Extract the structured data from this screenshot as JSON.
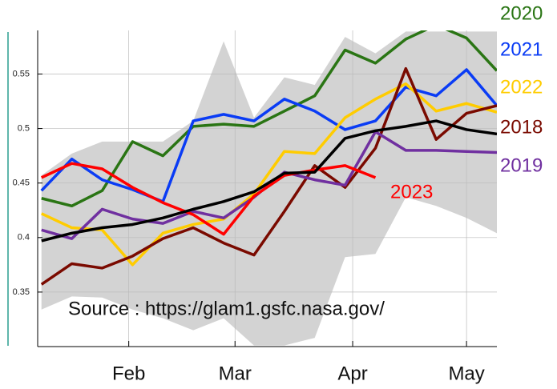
{
  "chart_data": {
    "type": "line",
    "annotation": "Source : https://glam1.gsfc.nasa.gov/",
    "x": [
      9,
      17,
      25,
      33,
      41,
      49,
      57,
      65,
      73,
      81,
      89,
      97,
      105,
      113,
      121,
      129
    ],
    "xlim": [
      8,
      129
    ],
    "xticks": [
      {
        "value": 32,
        "label": "Feb"
      },
      {
        "value": 60,
        "label": "Mar"
      },
      {
        "value": 91,
        "label": "Apr"
      },
      {
        "value": 121,
        "label": "May"
      }
    ],
    "ylim": [
      0.3,
      0.59
    ],
    "yticks": [
      0.35,
      0.4,
      0.45,
      0.5,
      0.55
    ],
    "grid": true,
    "band": {
      "color": "#d3d3d3",
      "lower": [
        0.334,
        0.346,
        0.345,
        0.334,
        0.326,
        0.315,
        0.326,
        0.301,
        0.301,
        0.308,
        0.382,
        0.385,
        0.437,
        0.429,
        0.418,
        0.404
      ],
      "upper": [
        0.457,
        0.477,
        0.488,
        0.488,
        0.488,
        0.507,
        0.58,
        0.51,
        0.547,
        0.54,
        0.584,
        0.569,
        0.589,
        0.589,
        0.589,
        0.589
      ]
    },
    "series": [
      {
        "name": "2020",
        "color": "#2a7514",
        "values": [
          0.436,
          0.429,
          0.443,
          0.488,
          0.475,
          0.502,
          0.504,
          0.502,
          0.516,
          0.53,
          0.572,
          0.56,
          0.582,
          0.595,
          0.583,
          0.553
        ]
      },
      {
        "name": "2021",
        "color": "#0a3cf5",
        "values": [
          0.443,
          0.472,
          0.453,
          0.444,
          0.433,
          0.507,
          0.513,
          0.507,
          0.527,
          0.516,
          0.499,
          0.507,
          0.538,
          0.53,
          0.554,
          0.521
        ]
      },
      {
        "name": "2022",
        "color": "#ffcc00",
        "values": [
          0.422,
          0.409,
          0.407,
          0.375,
          0.404,
          0.412,
          0.417,
          0.44,
          0.479,
          0.477,
          0.51,
          0.527,
          0.541,
          0.516,
          0.523,
          0.515
        ]
      },
      {
        "name": "2018",
        "color": "#7a0a00",
        "values": [
          0.357,
          0.376,
          0.372,
          0.383,
          0.399,
          0.409,
          0.395,
          0.384,
          0.424,
          0.466,
          0.446,
          0.482,
          0.555,
          0.49,
          0.514,
          0.521
        ]
      },
      {
        "name": "2019",
        "color": "#7030a0",
        "values": [
          0.407,
          0.399,
          0.426,
          0.417,
          0.413,
          0.424,
          0.418,
          0.437,
          0.46,
          0.453,
          0.448,
          0.497,
          0.48,
          0.48,
          0.479,
          0.478
        ]
      },
      {
        "name": "2023",
        "color": "#ff0000",
        "values": [
          0.455,
          0.468,
          0.463,
          0.446,
          0.432,
          0.421,
          0.403,
          0.438,
          0.457,
          0.462,
          0.466,
          0.455,
          null,
          null,
          null,
          null
        ]
      },
      {
        "color": "#000000",
        "values": [
          0.397,
          0.404,
          0.409,
          0.412,
          0.418,
          0.426,
          0.433,
          0.442,
          0.459,
          0.46,
          0.491,
          0.498,
          0.502,
          0.507,
          0.499,
          0.495
        ]
      }
    ]
  }
}
